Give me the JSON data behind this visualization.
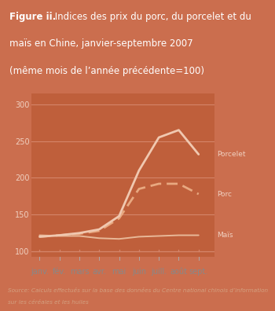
{
  "months": [
    "janv.",
    "fév.",
    "mars",
    "avr.",
    "mai",
    "juin",
    "juill.",
    "août",
    "sept."
  ],
  "porcelet": [
    120,
    122,
    125,
    130,
    148,
    210,
    255,
    265,
    232
  ],
  "porc": [
    120,
    122,
    124,
    128,
    145,
    185,
    192,
    192,
    178
  ],
  "mais": [
    122,
    121,
    121,
    118,
    117,
    120,
    121,
    122,
    122
  ],
  "yticks": [
    100,
    150,
    200,
    250,
    300
  ],
  "ylim": [
    93,
    315
  ],
  "xlim": [
    -0.4,
    8.8
  ],
  "bg_color_title": "#cb6e4e",
  "bg_color_plot": "#bf5f3b",
  "bg_color_bottom": "#bf5f3b",
  "bg_color_xaxis": "#f2e6df",
  "bg_color_source": "#bf5f3b",
  "line_color_porcelet": "#f0c8b0",
  "line_color_porc": "#e8a880",
  "line_color_mais": "#e8b898",
  "grid_color": "#d4856a",
  "tick_color": "#d4856a",
  "yticklabel_color": "#f0d0c0",
  "label_color": "#f0d0c0",
  "xaxis_text_color": "#888888",
  "source_text_color": "#d4a080",
  "title_bg": "#cb6e4e",
  "title_text_color": "white",
  "label_porcelet": "Porcelet",
  "label_porc": "Porc",
  "label_mais": "Maïs",
  "source_line1": "Source: Calculs effectués sur la base des données du Centre national chinois d’information",
  "source_line2": "sur les céréales et les huiles"
}
